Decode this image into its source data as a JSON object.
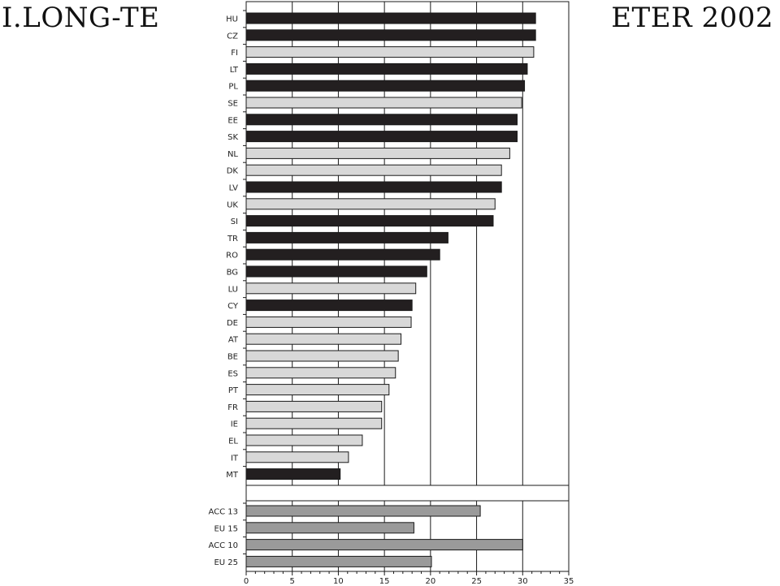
{
  "slide": {
    "title_left": "I.LONG-TE",
    "title_right": "ETER 2002"
  },
  "colors": {
    "dark": "#231f20",
    "light": "#d8d8d8",
    "aggregate": "#9a9a9a",
    "grid": "#1a1a1a"
  },
  "chart_data": {
    "type": "bar",
    "orientation": "horizontal",
    "title": "",
    "xlabel": "",
    "ylabel": "",
    "xlim": [
      0,
      35
    ],
    "xticks": [
      0,
      5,
      10,
      15,
      20,
      25,
      30,
      35
    ],
    "grid": true,
    "categories": [
      "HU",
      "CZ",
      "FI",
      "LT",
      "PL",
      "SE",
      "EE",
      "SK",
      "NL",
      "DK",
      "LV",
      "UK",
      "SI",
      "TR",
      "RO",
      "BG",
      "LU",
      "CY",
      "DE",
      "AT",
      "BE",
      "ES",
      "PT",
      "FR",
      "IE",
      "EL",
      "IT",
      "MT"
    ],
    "values": [
      31.4,
      31.4,
      31.2,
      30.5,
      30.2,
      29.9,
      29.4,
      29.4,
      28.6,
      27.7,
      27.7,
      27.0,
      26.8,
      21.9,
      21.0,
      19.6,
      18.4,
      18.0,
      17.9,
      16.8,
      16.5,
      16.2,
      15.5,
      14.7,
      14.7,
      12.6,
      11.1,
      10.2
    ],
    "groups": [
      "dark",
      "dark",
      "light",
      "dark",
      "dark",
      "light",
      "dark",
      "dark",
      "light",
      "light",
      "dark",
      "light",
      "dark",
      "dark",
      "dark",
      "dark",
      "light",
      "dark",
      "light",
      "light",
      "light",
      "light",
      "light",
      "light",
      "light",
      "light",
      "light",
      "dark"
    ],
    "aggregates": {
      "categories": [
        "ACC 13",
        "EU 15",
        "ACC 10",
        "EU 25"
      ],
      "values": [
        25.4,
        18.2,
        30.0,
        20.1
      ]
    }
  }
}
